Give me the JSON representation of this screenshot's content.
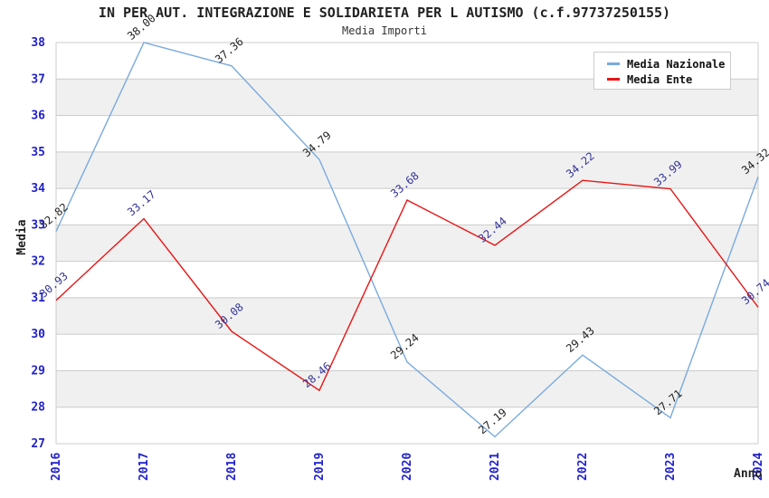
{
  "title": "IN PER AUT. INTEGRAZIONE E SOLIDARIETA PER L AUTISMO (c.f.97737250155)",
  "subtitle": "Media Importi",
  "chart_data": {
    "type": "line",
    "x": [
      2016,
      2017,
      2018,
      2019,
      2020,
      2021,
      2022,
      2023,
      2024
    ],
    "xlabel": "Anno",
    "ylabel": "Media",
    "ylim": [
      27,
      38
    ],
    "y_ticks": [
      27,
      28,
      29,
      30,
      31,
      32,
      33,
      34,
      35,
      36,
      37,
      38
    ],
    "grid": true,
    "banding": true,
    "legend_position": "top-right",
    "series": [
      {
        "name": "Media Nazionale",
        "color": "#79aade",
        "label_color": "#222222",
        "values": [
          32.82,
          38.0,
          37.36,
          34.79,
          29.24,
          27.19,
          29.43,
          27.71,
          34.32
        ]
      },
      {
        "name": "Media Ente",
        "color": "#e81515",
        "label_color": "#333399",
        "values": [
          30.93,
          33.17,
          30.08,
          28.46,
          33.68,
          32.44,
          34.22,
          33.99,
          30.74
        ]
      }
    ]
  },
  "colors": {
    "tick_label": "#2222cc",
    "gridline": "#cccccc",
    "band": "#f0f0f0",
    "axis_text": "#222222",
    "background": "#ffffff"
  }
}
